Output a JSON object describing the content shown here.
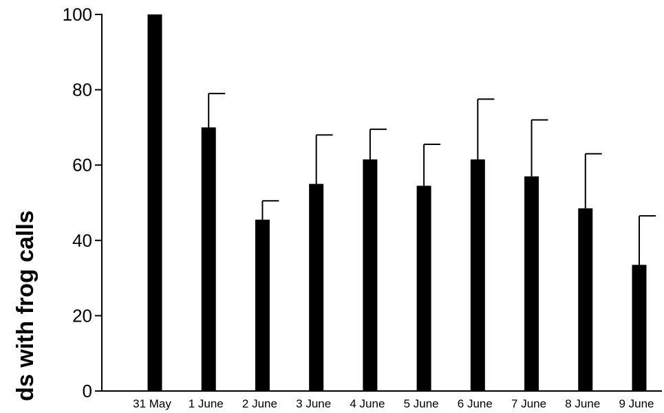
{
  "chart_data": {
    "type": "bar",
    "ylabel": "ds with frog calls",
    "ylim": [
      0,
      100
    ],
    "yticks": [
      "0",
      "20",
      "40",
      "60",
      "80",
      "100"
    ],
    "categories": [
      "31 May",
      "1 June",
      "2 June",
      "3 June",
      "4 June",
      "5 June",
      "6 June",
      "7 June",
      "8 June",
      "9 June"
    ],
    "values": [
      100,
      70,
      45.5,
      55,
      61.5,
      54.5,
      61.5,
      57,
      48.5,
      33.5
    ],
    "error_upper": [
      null,
      79,
      50.5,
      68,
      69.5,
      65.5,
      77.5,
      72,
      63,
      46.5
    ],
    "bar_color": "#000000",
    "grid": false,
    "legend": "none"
  }
}
